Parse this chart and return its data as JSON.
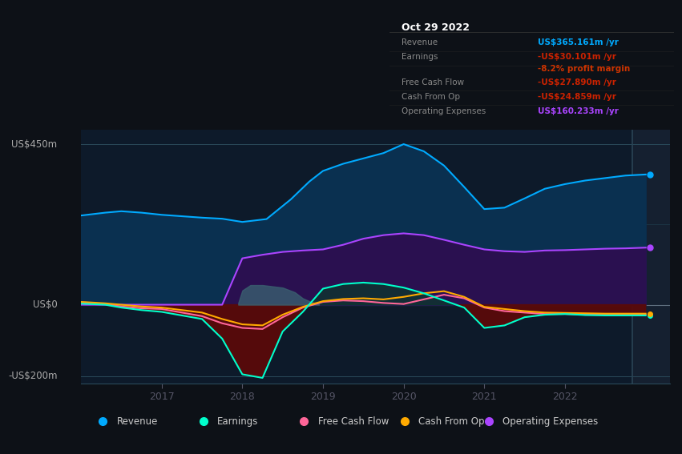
{
  "bg_color": "#0d1117",
  "plot_bg_color": "#0d1a2a",
  "grid_color": "#1e3a4a",
  "ylim": [
    -220,
    490
  ],
  "xlim": [
    2016.0,
    2023.3
  ],
  "xticks": [
    2017,
    2018,
    2019,
    2020,
    2021,
    2022
  ],
  "ylabel_top": "US$450m",
  "ylabel_zero": "US$0",
  "ylabel_bottom": "-US$200m",
  "series": {
    "revenue": {
      "color": "#00aaff",
      "fill_color": "#0a3050",
      "label": "Revenue",
      "x": [
        2016.0,
        2016.3,
        2016.5,
        2016.75,
        2017.0,
        2017.25,
        2017.5,
        2017.75,
        2018.0,
        2018.3,
        2018.6,
        2018.83,
        2019.0,
        2019.25,
        2019.5,
        2019.75,
        2020.0,
        2020.25,
        2020.5,
        2020.75,
        2021.0,
        2021.25,
        2021.5,
        2021.75,
        2022.0,
        2022.25,
        2022.5,
        2022.75,
        2023.0
      ],
      "y": [
        250,
        258,
        262,
        258,
        252,
        248,
        244,
        241,
        232,
        240,
        295,
        345,
        375,
        395,
        410,
        425,
        450,
        430,
        390,
        330,
        268,
        272,
        298,
        325,
        338,
        348,
        355,
        362,
        365
      ]
    },
    "opex": {
      "color": "#aa44ff",
      "fill_color": "#2a1050",
      "label": "Operating Expenses",
      "x": [
        2016.0,
        2016.5,
        2017.0,
        2017.5,
        2017.75,
        2018.0,
        2018.25,
        2018.5,
        2018.75,
        2019.0,
        2019.25,
        2019.5,
        2019.75,
        2020.0,
        2020.25,
        2020.5,
        2020.75,
        2021.0,
        2021.25,
        2021.5,
        2021.75,
        2022.0,
        2022.25,
        2022.5,
        2022.75,
        2023.0
      ],
      "y": [
        0,
        0,
        0,
        0,
        0,
        130,
        140,
        148,
        152,
        155,
        168,
        185,
        195,
        200,
        195,
        182,
        168,
        155,
        150,
        148,
        152,
        153,
        155,
        157,
        158,
        160
      ]
    },
    "earnings": {
      "color": "#00ffcc",
      "fill_color_neg": "#5a0a0a",
      "fill_color_pos": "#0a3a2a",
      "label": "Earnings",
      "x": [
        2016.0,
        2016.3,
        2016.5,
        2016.75,
        2017.0,
        2017.25,
        2017.5,
        2017.75,
        2018.0,
        2018.25,
        2018.5,
        2018.75,
        2019.0,
        2019.25,
        2019.5,
        2019.75,
        2020.0,
        2020.25,
        2020.5,
        2020.75,
        2021.0,
        2021.25,
        2021.5,
        2021.75,
        2022.0,
        2022.25,
        2022.5,
        2022.75,
        2023.0
      ],
      "y": [
        3,
        0,
        -8,
        -15,
        -20,
        -30,
        -40,
        -95,
        -195,
        -205,
        -75,
        -20,
        45,
        58,
        62,
        58,
        48,
        32,
        12,
        -8,
        -65,
        -58,
        -35,
        -28,
        -26,
        -29,
        -30,
        -30,
        -30
      ]
    },
    "fcf": {
      "color": "#ff6699",
      "label": "Free Cash Flow",
      "x": [
        2016.0,
        2016.3,
        2016.5,
        2016.75,
        2017.0,
        2017.25,
        2017.5,
        2017.75,
        2018.0,
        2018.25,
        2018.5,
        2018.75,
        2019.0,
        2019.25,
        2019.5,
        2019.75,
        2020.0,
        2020.25,
        2020.5,
        2020.75,
        2021.0,
        2021.25,
        2021.5,
        2021.75,
        2022.0,
        2022.25,
        2022.5,
        2022.75,
        2023.0
      ],
      "y": [
        5,
        2,
        -5,
        -10,
        -12,
        -22,
        -32,
        -52,
        -65,
        -68,
        -35,
        -8,
        8,
        12,
        10,
        5,
        2,
        15,
        28,
        18,
        -8,
        -18,
        -22,
        -26,
        -26,
        -28,
        -28,
        -28,
        -28
      ]
    },
    "cashfromop": {
      "color": "#ffaa00",
      "label": "Cash From Op",
      "x": [
        2016.0,
        2016.3,
        2016.5,
        2016.75,
        2017.0,
        2017.25,
        2017.5,
        2017.75,
        2018.0,
        2018.25,
        2018.5,
        2018.75,
        2019.0,
        2019.25,
        2019.5,
        2019.75,
        2020.0,
        2020.25,
        2020.5,
        2020.75,
        2021.0,
        2021.25,
        2021.5,
        2021.75,
        2022.0,
        2022.25,
        2022.5,
        2022.75,
        2023.0
      ],
      "y": [
        8,
        4,
        0,
        -5,
        -8,
        -15,
        -22,
        -40,
        -55,
        -58,
        -28,
        -6,
        10,
        16,
        18,
        15,
        22,
        32,
        38,
        22,
        -6,
        -12,
        -18,
        -22,
        -23,
        -24,
        -25,
        -25,
        -25
      ]
    }
  },
  "cashfromop_bump_x": [
    2017.95,
    2018.0,
    2018.1,
    2018.25,
    2018.5,
    2018.65,
    2018.75,
    2018.85,
    2018.95
  ],
  "cashfromop_bump_top": [
    5,
    40,
    55,
    55,
    48,
    35,
    18,
    8,
    2
  ],
  "cashfromop_bump_bot": [
    0,
    0,
    0,
    0,
    0,
    0,
    0,
    0,
    0
  ],
  "vline_x": 2022.83,
  "vline_color": "#2a4455",
  "highlight_color": "#152030",
  "tooltip": {
    "title": "Oct 29 2022",
    "rows": [
      {
        "label": "Revenue",
        "value": "US$365.161m /yr",
        "value_color": "#00aaff"
      },
      {
        "label": "Earnings",
        "value": "-US$30.101m /yr",
        "value_color": "#cc2200"
      },
      {
        "label": "",
        "value": "-8.2% profit margin",
        "value_color": "#cc3300"
      },
      {
        "label": "Free Cash Flow",
        "value": "-US$27.890m /yr",
        "value_color": "#cc2200"
      },
      {
        "label": "Cash From Op",
        "value": "-US$24.859m /yr",
        "value_color": "#cc2200"
      },
      {
        "label": "Operating Expenses",
        "value": "US$160.233m /yr",
        "value_color": "#aa44ff"
      }
    ]
  },
  "legend": [
    {
      "label": "Revenue",
      "color": "#00aaff"
    },
    {
      "label": "Earnings",
      "color": "#00ffcc"
    },
    {
      "label": "Free Cash Flow",
      "color": "#ff6699"
    },
    {
      "label": "Cash From Op",
      "color": "#ffaa00"
    },
    {
      "label": "Operating Expenses",
      "color": "#aa44ff"
    }
  ]
}
